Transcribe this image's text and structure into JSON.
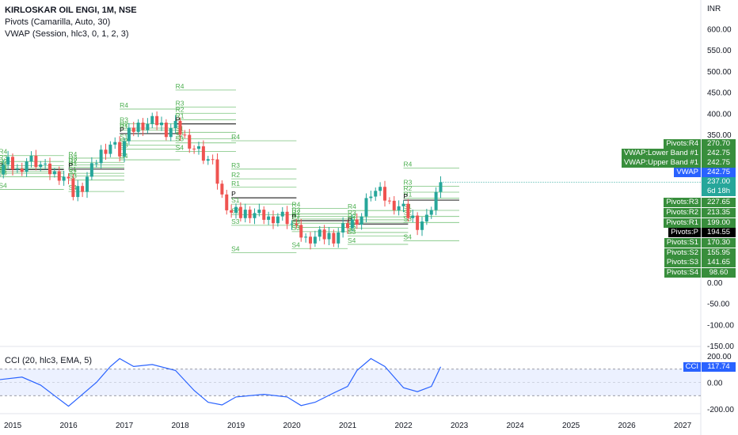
{
  "header": {
    "symbol_line": "KIRLOSKAR OIL ENGI, 1M, NSE",
    "pivots_line": "Pivots (Camarilla, Auto, 30)",
    "vwap_line": "VWAP (Session, hlc3, 0, 1, 2, 3)",
    "cci_line": "CCI (20, hlc3, EMA, 5)",
    "currency": "INR"
  },
  "price_axis_ticks": [
    "600.00",
    "550.00",
    "500.00",
    "450.00",
    "400.00",
    "350.00",
    "0.00",
    "-50.00",
    "-100.00",
    "-150.00"
  ],
  "cci_axis_ticks": [
    "200.00",
    "0.00",
    "-200.00"
  ],
  "time_axis_ticks": [
    "2015",
    "2016",
    "2017",
    "2018",
    "2019",
    "2020",
    "2021",
    "2022",
    "2023",
    "2024",
    "2025",
    "2026",
    "2027"
  ],
  "price_badges": [
    {
      "label": "Pivots:R4",
      "value": "270.70",
      "color": "#388e3c"
    },
    {
      "label": "VWAP:Lower Band #1",
      "value": "242.75",
      "color": "#388e3c"
    },
    {
      "label": "VWAP:Upper Band #1",
      "value": "242.75",
      "color": "#388e3c"
    },
    {
      "label": "VWAP",
      "value": "242.75",
      "color": "#2962ff"
    },
    {
      "label": "",
      "value": "237.00",
      "sub": "6d 18h",
      "color": "#26a69a"
    },
    {
      "label": "Pivots:R3",
      "value": "227.65",
      "color": "#388e3c"
    },
    {
      "label": "Pivots:R2",
      "value": "213.35",
      "color": "#388e3c"
    },
    {
      "label": "Pivots:R1",
      "value": "199.00",
      "color": "#388e3c"
    },
    {
      "label": "Pivots:P",
      "value": "194.55",
      "color": "#000000"
    },
    {
      "label": "Pivots:S1",
      "value": "170.30",
      "color": "#388e3c"
    },
    {
      "label": "Pivots:S2",
      "value": "155.95",
      "color": "#388e3c"
    },
    {
      "label": "Pivots:S3",
      "value": "141.65",
      "color": "#388e3c"
    },
    {
      "label": "Pivots:S4",
      "value": "98.60",
      "color": "#388e3c"
    }
  ],
  "cci_badge": {
    "label": "CCI",
    "value": "117.74",
    "color": "#2962ff"
  },
  "pivot_labels": {
    "r4": "R4",
    "r3": "R3",
    "r2": "R2",
    "r1": "R1",
    "p": "P",
    "s1": "S1",
    "s2": "S2",
    "s3": "S3",
    "s4": "S4"
  },
  "colors": {
    "up": "#26a69a",
    "down": "#ef5350",
    "pivot": "#4caf50",
    "pivot_p": "#000000",
    "cci": "#2962ff",
    "cci_band": "#2962ff"
  },
  "chart_data": [
    {
      "type": "candlestick",
      "title": "KIRLOSKAR OIL ENGI, 1M, NSE",
      "x_range": [
        "2014-10",
        "2027-06"
      ],
      "y_unit": "INR",
      "price_markers": {
        "last_close": 237.0,
        "vwap": 242.75,
        "pivot_r4": 270.7,
        "pivot_r3": 227.65,
        "pivot_r2": 213.35,
        "pivot_r1": 199.0,
        "pivot_p": 194.55,
        "pivot_s1": 170.3,
        "pivot_s2": 155.95,
        "pivot_s3": 141.65,
        "pivot_s4": 98.6
      },
      "candles_close": [
        {
          "x": "2014-10",
          "c": 272
        },
        {
          "x": "2014-12",
          "c": 285
        },
        {
          "x": "2015-02",
          "c": 265
        },
        {
          "x": "2015-04",
          "c": 290
        },
        {
          "x": "2015-06",
          "c": 285
        },
        {
          "x": "2015-08",
          "c": 265
        },
        {
          "x": "2015-10",
          "c": 255
        },
        {
          "x": "2015-12",
          "c": 250
        },
        {
          "x": "2016-02",
          "c": 210
        },
        {
          "x": "2016-04",
          "c": 230
        },
        {
          "x": "2016-06",
          "c": 270
        },
        {
          "x": "2016-08",
          "c": 310
        },
        {
          "x": "2016-10",
          "c": 330
        },
        {
          "x": "2016-12",
          "c": 310
        },
        {
          "x": "2017-02",
          "c": 350
        },
        {
          "x": "2017-04",
          "c": 370
        },
        {
          "x": "2017-06",
          "c": 375
        },
        {
          "x": "2017-08",
          "c": 380
        },
        {
          "x": "2017-10",
          "c": 360
        },
        {
          "x": "2017-12",
          "c": 370
        },
        {
          "x": "2018-02",
          "c": 345
        },
        {
          "x": "2018-04",
          "c": 320
        },
        {
          "x": "2018-06",
          "c": 300
        },
        {
          "x": "2018-08",
          "c": 275
        },
        {
          "x": "2018-10",
          "c": 200
        },
        {
          "x": "2018-12",
          "c": 165
        },
        {
          "x": "2019-02",
          "c": 160
        },
        {
          "x": "2019-04",
          "c": 168
        },
        {
          "x": "2019-06",
          "c": 160
        },
        {
          "x": "2019-08",
          "c": 152
        },
        {
          "x": "2019-10",
          "c": 160
        },
        {
          "x": "2019-12",
          "c": 150
        },
        {
          "x": "2020-02",
          "c": 120
        },
        {
          "x": "2020-04",
          "c": 100
        },
        {
          "x": "2020-06",
          "c": 108
        },
        {
          "x": "2020-08",
          "c": 110
        },
        {
          "x": "2020-10",
          "c": 108
        },
        {
          "x": "2020-12",
          "c": 128
        },
        {
          "x": "2021-02",
          "c": 145
        },
        {
          "x": "2021-04",
          "c": 160
        },
        {
          "x": "2021-06",
          "c": 215
        },
        {
          "x": "2021-08",
          "c": 210
        },
        {
          "x": "2021-10",
          "c": 185
        },
        {
          "x": "2021-12",
          "c": 180
        },
        {
          "x": "2022-02",
          "c": 160
        },
        {
          "x": "2022-04",
          "c": 140
        },
        {
          "x": "2022-06",
          "c": 148
        },
        {
          "x": "2022-08",
          "c": 210
        },
        {
          "x": "2022-09",
          "c": 237
        }
      ]
    },
    {
      "type": "line",
      "title": "CCI (20, hlc3, EMA, 5)",
      "ylim": [
        -200,
        200
      ],
      "band": [
        100,
        -100
      ],
      "series": [
        {
          "name": "CCI",
          "values": [
            {
              "x": "2014-10",
              "y": 20
            },
            {
              "x": "2015-03",
              "y": 40
            },
            {
              "x": "2015-07",
              "y": -20
            },
            {
              "x": "2015-10",
              "y": -100
            },
            {
              "x": "2016-01",
              "y": -180
            },
            {
              "x": "2016-03",
              "y": -120
            },
            {
              "x": "2016-07",
              "y": 0
            },
            {
              "x": "2016-10",
              "y": 120
            },
            {
              "x": "2016-12",
              "y": 180
            },
            {
              "x": "2017-03",
              "y": 120
            },
            {
              "x": "2017-07",
              "y": 135
            },
            {
              "x": "2017-12",
              "y": 90
            },
            {
              "x": "2018-04",
              "y": -60
            },
            {
              "x": "2018-07",
              "y": -150
            },
            {
              "x": "2018-10",
              "y": -170
            },
            {
              "x": "2019-01",
              "y": -110
            },
            {
              "x": "2019-07",
              "y": -90
            },
            {
              "x": "2019-12",
              "y": -110
            },
            {
              "x": "2020-03",
              "y": -175
            },
            {
              "x": "2020-06",
              "y": -150
            },
            {
              "x": "2020-10",
              "y": -80
            },
            {
              "x": "2021-01",
              "y": -30
            },
            {
              "x": "2021-03",
              "y": 90
            },
            {
              "x": "2021-06",
              "y": 180
            },
            {
              "x": "2021-09",
              "y": 120
            },
            {
              "x": "2022-01",
              "y": -40
            },
            {
              "x": "2022-04",
              "y": -70
            },
            {
              "x": "2022-07",
              "y": -30
            },
            {
              "x": "2022-09",
              "y": 118
            }
          ]
        }
      ]
    }
  ]
}
